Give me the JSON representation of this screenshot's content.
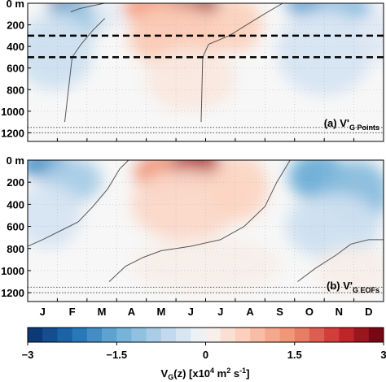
{
  "chart_data": [
    {
      "type": "heatmap",
      "panel_label": "(a) V'",
      "panel_label_sub": "G Points",
      "y_tick_labels": [
        "0 m",
        "200",
        "400",
        "600",
        "800",
        "1000",
        "1200"
      ],
      "y_ticks": [
        0,
        200,
        400,
        600,
        800,
        1000,
        1200
      ],
      "ylim": [
        0,
        1280
      ],
      "y_inverted": true,
      "x_tick_labels": [
        "J",
        "F",
        "M",
        "A",
        "M",
        "J",
        "J",
        "A",
        "S",
        "O",
        "N",
        "D"
      ],
      "dashed_lines_depth": [
        300,
        500
      ],
      "dotted_lines_depth": [
        1150,
        1200
      ],
      "zero_contour_segments": [
        {
          "months": [
            1.75,
            2.0,
            2.3,
            2.7,
            3.1
          ],
          "depth": [
            1100,
            500,
            380,
            250,
            140
          ]
        },
        {
          "months": [
            1.95,
            2.25,
            2.65,
            3.1
          ],
          "depth": [
            80,
            50,
            25,
            0
          ]
        },
        {
          "months": [
            6.35,
            6.4,
            6.6,
            7.3,
            8.0,
            8.6,
            9.1
          ],
          "depth": [
            1100,
            500,
            380,
            300,
            180,
            80,
            0
          ]
        }
      ],
      "grid": true
    },
    {
      "type": "heatmap",
      "panel_label": "(b) V'",
      "panel_label_sub": "G EOFs",
      "y_tick_labels": [
        "0 m",
        "200",
        "400",
        "600",
        "800",
        "1000",
        "1200"
      ],
      "y_ticks": [
        0,
        200,
        400,
        600,
        800,
        1000,
        1200
      ],
      "ylim": [
        0,
        1280
      ],
      "y_inverted": true,
      "x_tick_labels": [
        "J",
        "F",
        "M",
        "A",
        "M",
        "J",
        "J",
        "A",
        "S",
        "O",
        "N",
        "D"
      ],
      "dotted_lines_depth": [
        1150,
        1200
      ],
      "zero_contour_segments": [
        {
          "months": [
            0.5,
            1.0,
            1.6,
            2.2,
            2.7,
            3.2,
            3.6,
            3.9
          ],
          "depth": [
            780,
            720,
            640,
            560,
            420,
            260,
            80,
            0
          ]
        },
        {
          "months": [
            3.25,
            3.8,
            4.4,
            5.0,
            6.0,
            7.0,
            7.8,
            8.5,
            8.9,
            9.35
          ],
          "depth": [
            1100,
            960,
            880,
            820,
            780,
            720,
            600,
            420,
            200,
            0
          ]
        },
        {
          "months": [
            9.6,
            10.2,
            10.9,
            11.4,
            12.0,
            12.5
          ],
          "depth": [
            1100,
            980,
            860,
            760,
            720,
            720
          ]
        }
      ],
      "grid": true
    }
  ],
  "colorbar": {
    "ticks": [
      -3,
      -1.5,
      0,
      1.5,
      3
    ],
    "tick_labels": [
      "−3",
      "−1.5",
      "0",
      "1.5",
      "3"
    ],
    "range": [
      -3,
      3
    ],
    "n_levels": 24,
    "label_main": "V",
    "label_sub": "G",
    "label_rest": "(z) [x10",
    "label_exp1": "4",
    "label_mid": " m",
    "label_exp2": "2",
    "label_mid2": " s",
    "label_exp3": "-1",
    "label_end": "]"
  },
  "colors": {
    "neg_strong": "#08306b",
    "neutral": "#f7f7f7",
    "pos_strong": "#67000d",
    "contour": "#555555"
  }
}
